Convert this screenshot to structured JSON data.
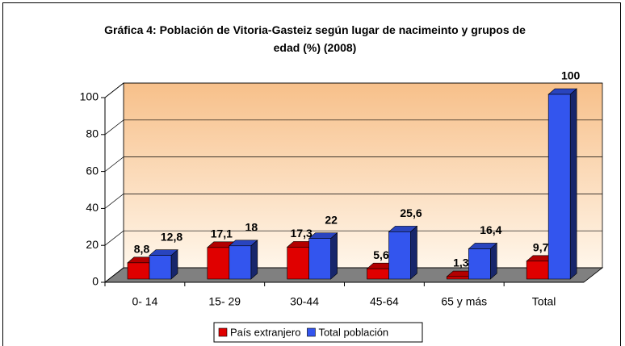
{
  "chart_data": {
    "type": "bar3d",
    "title": "Gráfica 4: Población de Vitoria-Gasteiz según lugar de nacimeinto y grupos de edad  (%) (2008)",
    "categories": [
      "0- 14",
      "15- 29",
      "30-44",
      "45-64",
      "65 y más",
      "Total"
    ],
    "series": [
      {
        "name": "País extranjero",
        "color": "#e00000",
        "values": [
          8.8,
          17.1,
          17.3,
          5.6,
          1.3,
          9.7
        ],
        "value_labels": [
          "8,8",
          "17,1",
          "17,3",
          "5,6",
          "1,3",
          "9,7"
        ]
      },
      {
        "name": "Total población",
        "color": "#3355ee",
        "values": [
          12.8,
          18,
          22,
          25.6,
          16.4,
          100
        ],
        "value_labels": [
          "12,8",
          "18",
          "22",
          "25,6",
          "16,4",
          "100"
        ]
      }
    ],
    "ylim": [
      0,
      100
    ],
    "yticks": [
      0,
      20,
      40,
      60,
      80,
      100
    ],
    "grid": true,
    "legend": "bottom"
  }
}
